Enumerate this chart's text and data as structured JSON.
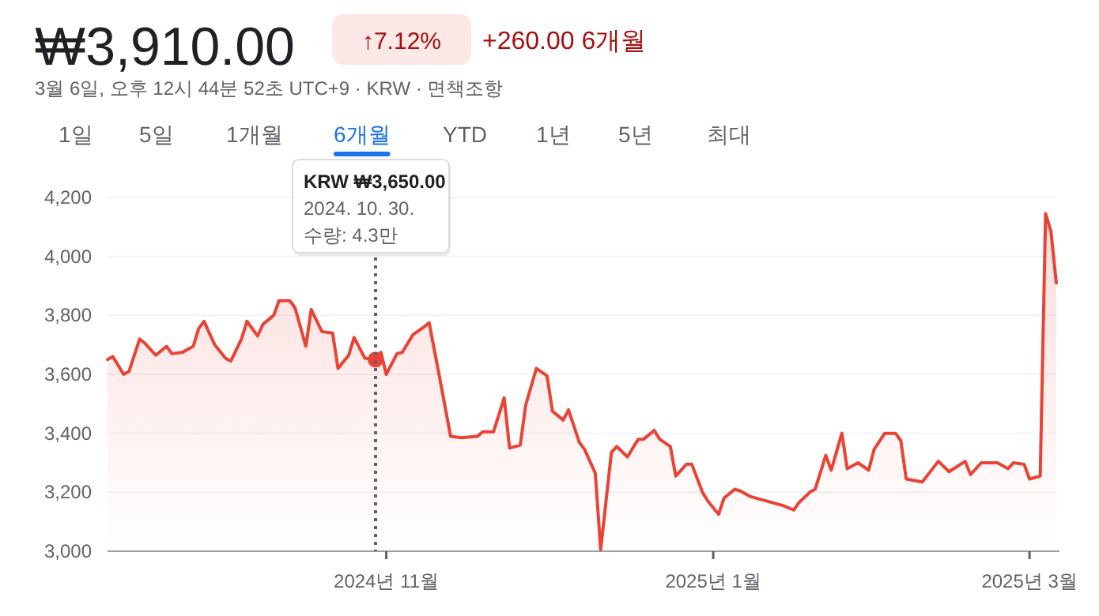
{
  "chart_data": {
    "type": "area",
    "title": "₩3,910.00",
    "subtitle": "3월 6일, 오후 12시 44분 52초 UTC+9 · KRW · 면책조항",
    "annotations": [
      "↑7.12%",
      "+260.00 6개월",
      "1일",
      "5일",
      "1개월",
      "6개월",
      "YTD",
      "1년",
      "5년",
      "최대",
      "KRW ₩3,650.00",
      "2024. 10. 30.",
      "수량: 4.3만"
    ],
    "ref_lines": [
      {
        "axis": "x",
        "value": "2024-10-30",
        "line_style": "dotted",
        "color": "#5f6368"
      }
    ],
    "xlim": [
      "2024-09-10",
      "2025-03-06"
    ],
    "xticks": [
      {
        "value": "2024-11-01",
        "label": "2024년 11월"
      },
      {
        "value": "2025-01-01",
        "label": "2025년 1월"
      },
      {
        "value": "2025-03-01",
        "label": "2025년 3월"
      }
    ],
    "ylim": [
      3000,
      4200
    ],
    "yticks": [
      {
        "value": 3000,
        "label": "3,000"
      },
      {
        "value": 3200,
        "label": "3,200"
      },
      {
        "value": 3400,
        "label": "3,400"
      },
      {
        "value": 3600,
        "label": "3,600"
      },
      {
        "value": 3800,
        "label": "3,800"
      },
      {
        "value": 4000,
        "label": "4,000"
      },
      {
        "value": 4200,
        "label": "4,200"
      }
    ],
    "grid": "y",
    "series": [
      {
        "color": "#ea4335",
        "x": [
          "2024-09-10",
          "2024-09-11",
          "2024-09-13",
          "2024-09-14",
          "2024-09-16",
          "2024-09-17",
          "2024-09-19",
          "2024-09-21",
          "2024-09-22",
          "2024-09-24",
          "2024-09-26",
          "2024-09-27",
          "2024-09-28",
          "2024-09-30",
          "2024-10-02",
          "2024-10-03",
          "2024-10-05",
          "2024-10-06",
          "2024-10-08",
          "2024-10-09",
          "2024-10-11",
          "2024-10-12",
          "2024-10-14",
          "2024-10-15",
          "2024-10-17",
          "2024-10-18",
          "2024-10-20",
          "2024-10-22",
          "2024-10-23",
          "2024-10-25",
          "2024-10-26",
          "2024-10-28",
          "2024-10-30",
          "2024-10-31",
          "2024-11-01",
          "2024-11-03",
          "2024-11-04",
          "2024-11-06",
          "2024-11-08",
          "2024-11-09",
          "2024-11-11",
          "2024-11-13",
          "2024-11-15",
          "2024-11-18",
          "2024-11-19",
          "2024-11-21",
          "2024-11-23",
          "2024-11-24",
          "2024-11-26",
          "2024-11-27",
          "2024-11-29",
          "2024-12-01",
          "2024-12-02",
          "2024-12-04",
          "2024-12-05",
          "2024-12-07",
          "2024-12-08",
          "2024-12-10",
          "2024-12-11",
          "2024-12-13",
          "2024-12-14",
          "2024-12-16",
          "2024-12-18",
          "2024-12-19",
          "2024-12-21",
          "2024-12-22",
          "2024-12-24",
          "2024-12-25",
          "2024-12-27",
          "2024-12-28",
          "2024-12-30",
          "2024-12-31",
          "2025-01-02",
          "2025-01-03",
          "2025-01-05",
          "2025-01-06",
          "2025-01-08",
          "2025-01-12",
          "2025-01-14",
          "2025-01-16",
          "2025-01-17",
          "2025-01-19",
          "2025-01-20",
          "2025-01-22",
          "2025-01-23",
          "2025-01-25",
          "2025-01-26",
          "2025-01-28",
          "2025-01-30",
          "2025-01-31",
          "2025-02-02",
          "2025-02-04",
          "2025-02-05",
          "2025-02-06",
          "2025-02-09",
          "2025-02-12",
          "2025-02-14",
          "2025-02-17",
          "2025-02-18",
          "2025-02-20",
          "2025-02-23",
          "2025-02-25",
          "2025-02-26",
          "2025-02-28",
          "2025-03-01",
          "2025-03-03",
          "2025-03-04",
          "2025-03-05",
          "2025-03-06"
        ],
        "values": [
          3650,
          3660,
          3600,
          3610,
          3720,
          3705,
          3665,
          3695,
          3670,
          3675,
          3695,
          3755,
          3780,
          3700,
          3655,
          3645,
          3720,
          3780,
          3730,
          3770,
          3800,
          3850,
          3850,
          3825,
          3695,
          3820,
          3745,
          3740,
          3620,
          3665,
          3725,
          3655,
          3650,
          3675,
          3600,
          3670,
          3675,
          3735,
          3760,
          3775,
          3585,
          3390,
          3385,
          3390,
          3405,
          3405,
          3520,
          3350,
          3360,
          3495,
          3620,
          3595,
          3475,
          3445,
          3480,
          3370,
          3345,
          3265,
          3005,
          3335,
          3355,
          3320,
          3380,
          3380,
          3410,
          3380,
          3355,
          3255,
          3295,
          3295,
          3200,
          3170,
          3125,
          3180,
          3210,
          3205,
          3185,
          3165,
          3155,
          3140,
          3165,
          3200,
          3210,
          3325,
          3275,
          3400,
          3280,
          3300,
          3275,
          3345,
          3400,
          3400,
          3375,
          3245,
          3235,
          3305,
          3270,
          3305,
          3260,
          3300,
          3300,
          3280,
          3300,
          3295,
          3245,
          3255,
          4145,
          4085,
          3910
        ]
      },
      {
        "type": "scatter",
        "color": "#ea4335",
        "marker": "circle",
        "x": [
          "2024-10-30"
        ],
        "values": [
          3650
        ]
      }
    ]
  }
}
